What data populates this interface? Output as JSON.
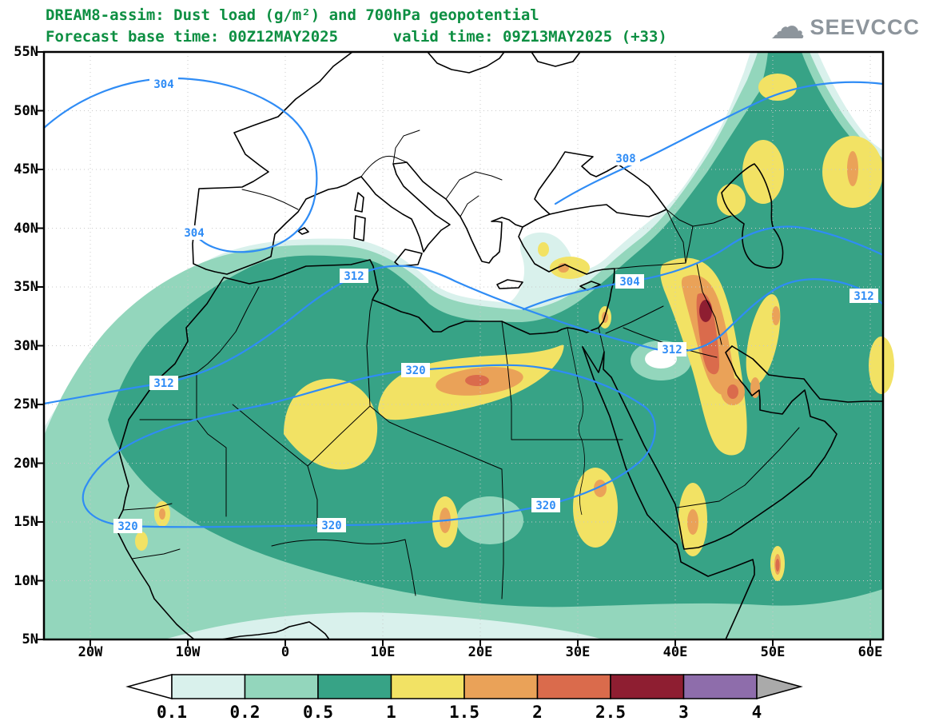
{
  "title": {
    "line1": "DREAM8-assim: Dust load (g/m²) and 700hPa geopotential",
    "line2": "Forecast base time: 00Z12MAY2025      valid time: 09Z13MAY2025 (+33)"
  },
  "logo": {
    "text": "SEEVCCC",
    "icon": "cloud"
  },
  "axes": {
    "y_ticks": [
      "55N",
      "50N",
      "45N",
      "40N",
      "35N",
      "30N",
      "25N",
      "20N",
      "15N",
      "10N",
      "5N"
    ],
    "x_ticks": [
      "20W",
      "10W",
      "0",
      "10E",
      "20E",
      "30E",
      "40E",
      "50E",
      "60E"
    ]
  },
  "map": {
    "field_name": "Dust load (g/m²)",
    "overlay_name": "700hPa geopotential",
    "contour_labels": [
      "304",
      "304",
      "308",
      "304",
      "312",
      "312",
      "312",
      "312",
      "320",
      "320",
      "320",
      "320"
    ]
  },
  "legend": {
    "labels": [
      "0.1",
      "0.2",
      "0.5",
      "1",
      "1.5",
      "2",
      "2.5",
      "3",
      "4"
    ],
    "colors": [
      "#d9f1ec",
      "#93d6bc",
      "#37a386",
      "#f2e264",
      "#eaa258",
      "#da6b4c",
      "#8e1e31",
      "#8e6dab"
    ],
    "arrow_left": "#ffffff",
    "arrow_right": "#aaaaaa"
  },
  "colors": {
    "title_green": "#0d8f42",
    "contour_blue": "#2f8cf5",
    "coast": "#000000",
    "border": "#000000",
    "grid": "#c9c9c9",
    "axis_text": "#000000",
    "logo_gray": "#8d959c",
    "no_dust": "#ffffff",
    "dust": {
      "d01": "#d9f1ec",
      "d02": "#93d6bc",
      "d05": "#37a386",
      "d1": "#f2e264",
      "d15": "#eaa258",
      "d2": "#da6b4c",
      "d25": "#8e1e31",
      "d3": "#8e6dab",
      "d4": "#aaaaaa"
    }
  }
}
